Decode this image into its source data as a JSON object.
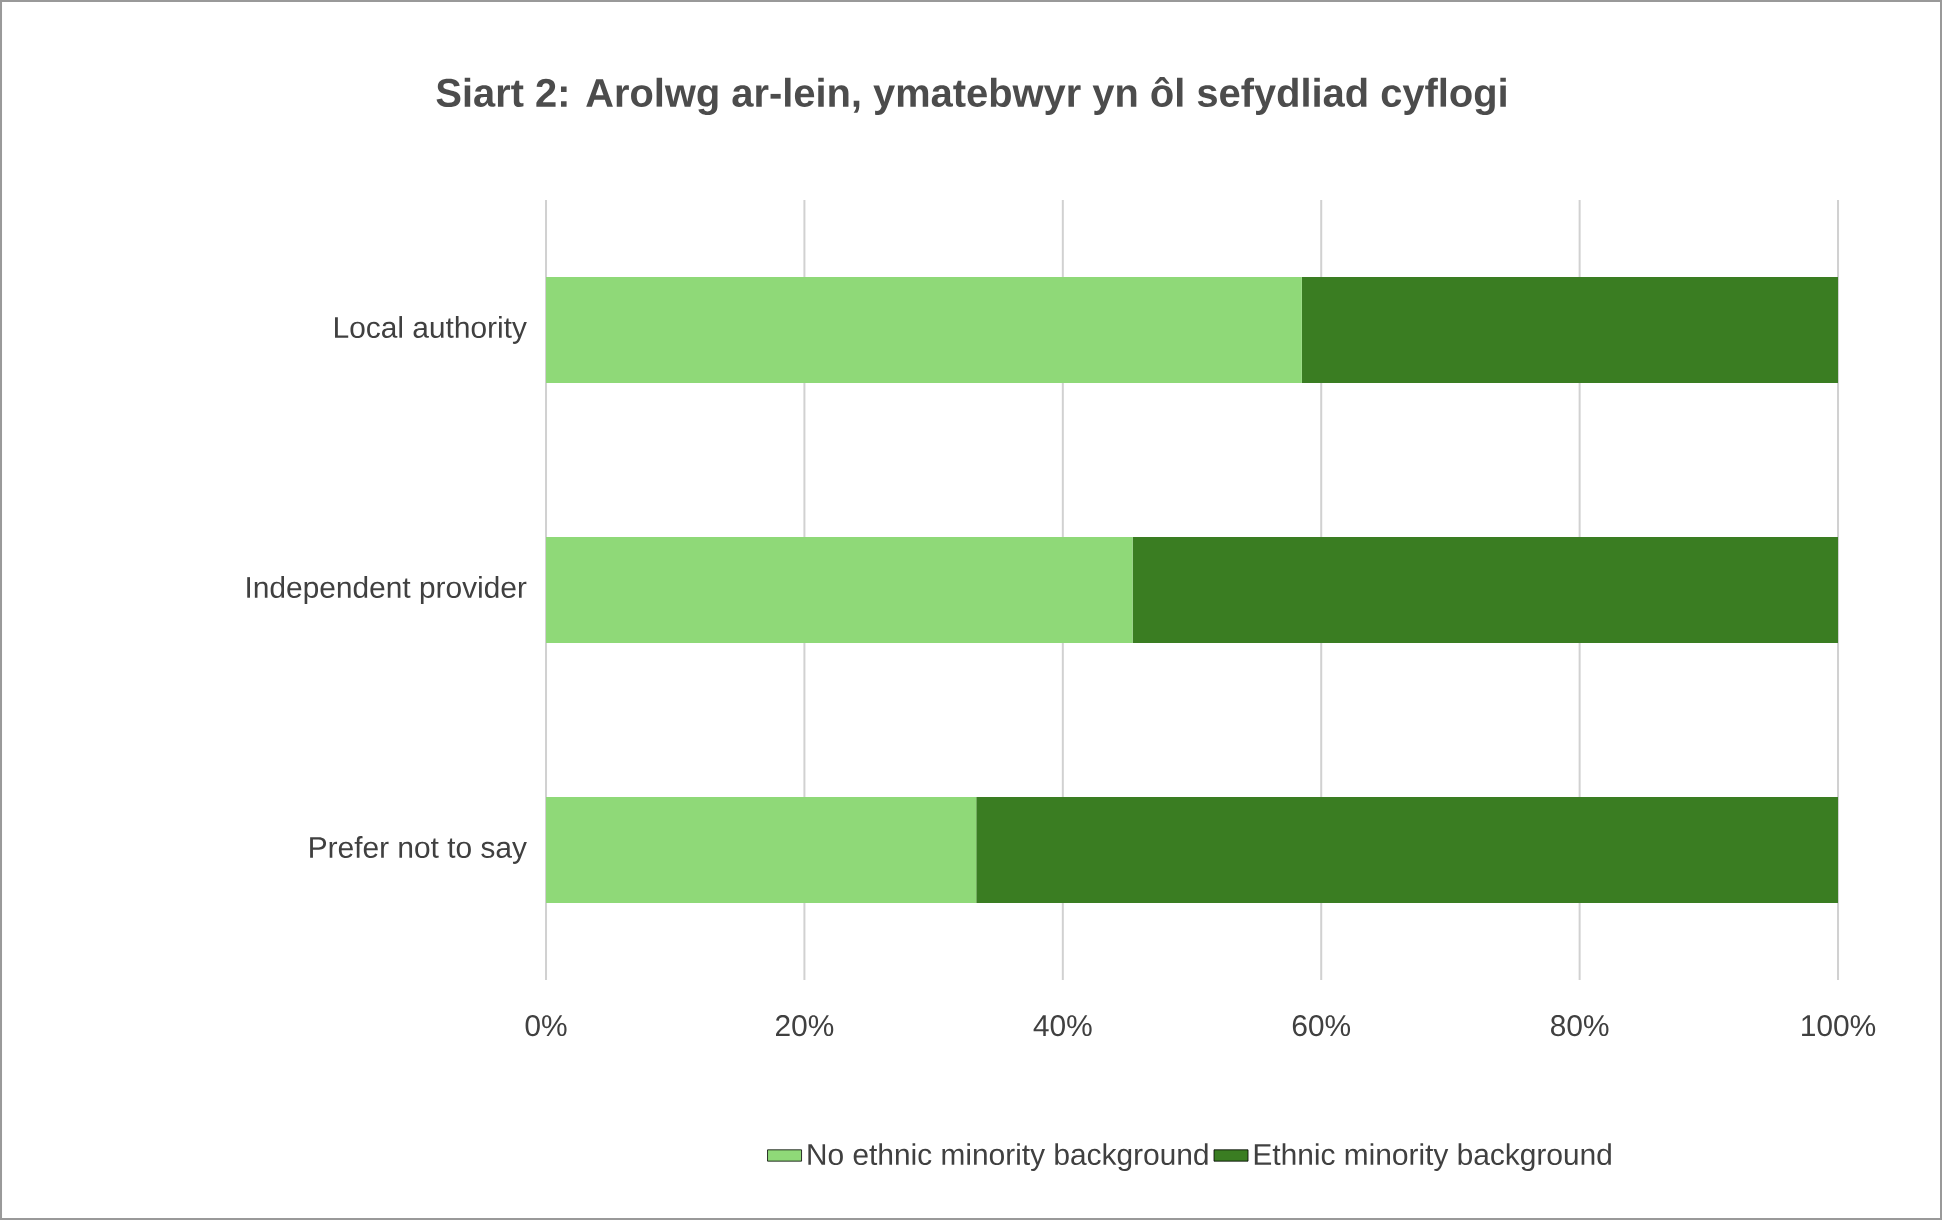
{
  "chart_data": {
    "type": "bar",
    "orientation": "horizontal",
    "stacked": true,
    "title": "Siart 2: Arolwg ar-lein, ymatebwyr yn ôl sefydliad cyflogi",
    "categories": [
      "Local authority",
      "Independent provider",
      "Prefer not to say"
    ],
    "series": [
      {
        "name": "No ethnic minority background",
        "color": "#8fd978",
        "values": [
          58.5,
          45.4,
          33.3
        ]
      },
      {
        "name": "Ethnic minority background",
        "color": "#3a7d22",
        "values": [
          41.5,
          54.6,
          66.7
        ]
      }
    ],
    "xlim": [
      0,
      100
    ],
    "xticks": [
      {
        "value": 0,
        "label": "0%"
      },
      {
        "value": 20,
        "label": "20%"
      },
      {
        "value": 40,
        "label": "40%"
      },
      {
        "value": 60,
        "label": "60%"
      },
      {
        "value": 80,
        "label": "80%"
      },
      {
        "value": 100,
        "label": "100%"
      }
    ],
    "grid": "x",
    "legend": "bottom"
  }
}
